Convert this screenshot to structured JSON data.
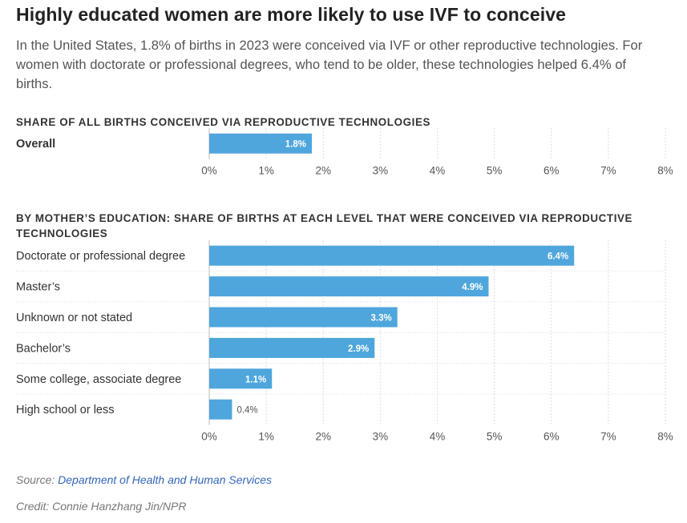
{
  "header": {
    "title": "Highly educated women are more likely to use IVF to conceive",
    "subtitle": "In the United States, 1.8% of births in 2023 were conceived via IVF or other reproductive technologies. For women with doctorate or professional degrees, who tend to be older, these technologies helped 6.4% of births."
  },
  "sections": {
    "overall_label": "SHARE OF ALL BIRTHS CONCEIVED VIA REPRODUCTIVE TECHNOLOGIES",
    "education_label": "BY MOTHER’S EDUCATION: SHARE OF BIRTHS AT EACH LEVEL THAT WERE CONCEIVED VIA REPRODUCTIVE TECHNOLOGIES"
  },
  "footer": {
    "source_prefix": "Source:",
    "source_link": "Department of Health and Human Services",
    "credit": "Credit: Connie Hanzhang Jin/NPR"
  },
  "colors": {
    "bar": "#4ea6dc",
    "grid": "#dddddd",
    "label_inside": "#ffffff",
    "label_outside": "#555555"
  },
  "chart_data": [
    {
      "type": "bar",
      "orientation": "horizontal",
      "title": "SHARE OF ALL BIRTHS CONCEIVED VIA REPRODUCTIVE TECHNOLOGIES",
      "categories": [
        "Overall"
      ],
      "values": [
        1.8
      ],
      "data_labels": [
        "1.8%"
      ],
      "xlim": [
        0,
        8
      ],
      "xticks": [
        "0%",
        "1%",
        "2%",
        "3%",
        "4%",
        "5%",
        "6%",
        "7%",
        "8%"
      ],
      "grid": true,
      "bold_categories": true
    },
    {
      "type": "bar",
      "orientation": "horizontal",
      "title": "BY MOTHER’S EDUCATION: SHARE OF BIRTHS AT EACH LEVEL THAT WERE CONCEIVED VIA REPRODUCTIVE TECHNOLOGIES",
      "categories": [
        "Doctorate or professional degree",
        "Master’s",
        "Unknown or not stated",
        "Bachelor’s",
        "Some college, associate degree",
        "High school or less"
      ],
      "values": [
        6.4,
        4.9,
        3.3,
        2.9,
        1.1,
        0.4
      ],
      "data_labels": [
        "6.4%",
        "4.9%",
        "3.3%",
        "2.9%",
        "1.1%",
        "0.4%"
      ],
      "xlim": [
        0,
        8
      ],
      "xticks": [
        "0%",
        "1%",
        "2%",
        "3%",
        "4%",
        "5%",
        "6%",
        "7%",
        "8%"
      ],
      "grid": true,
      "bold_categories": false
    }
  ]
}
